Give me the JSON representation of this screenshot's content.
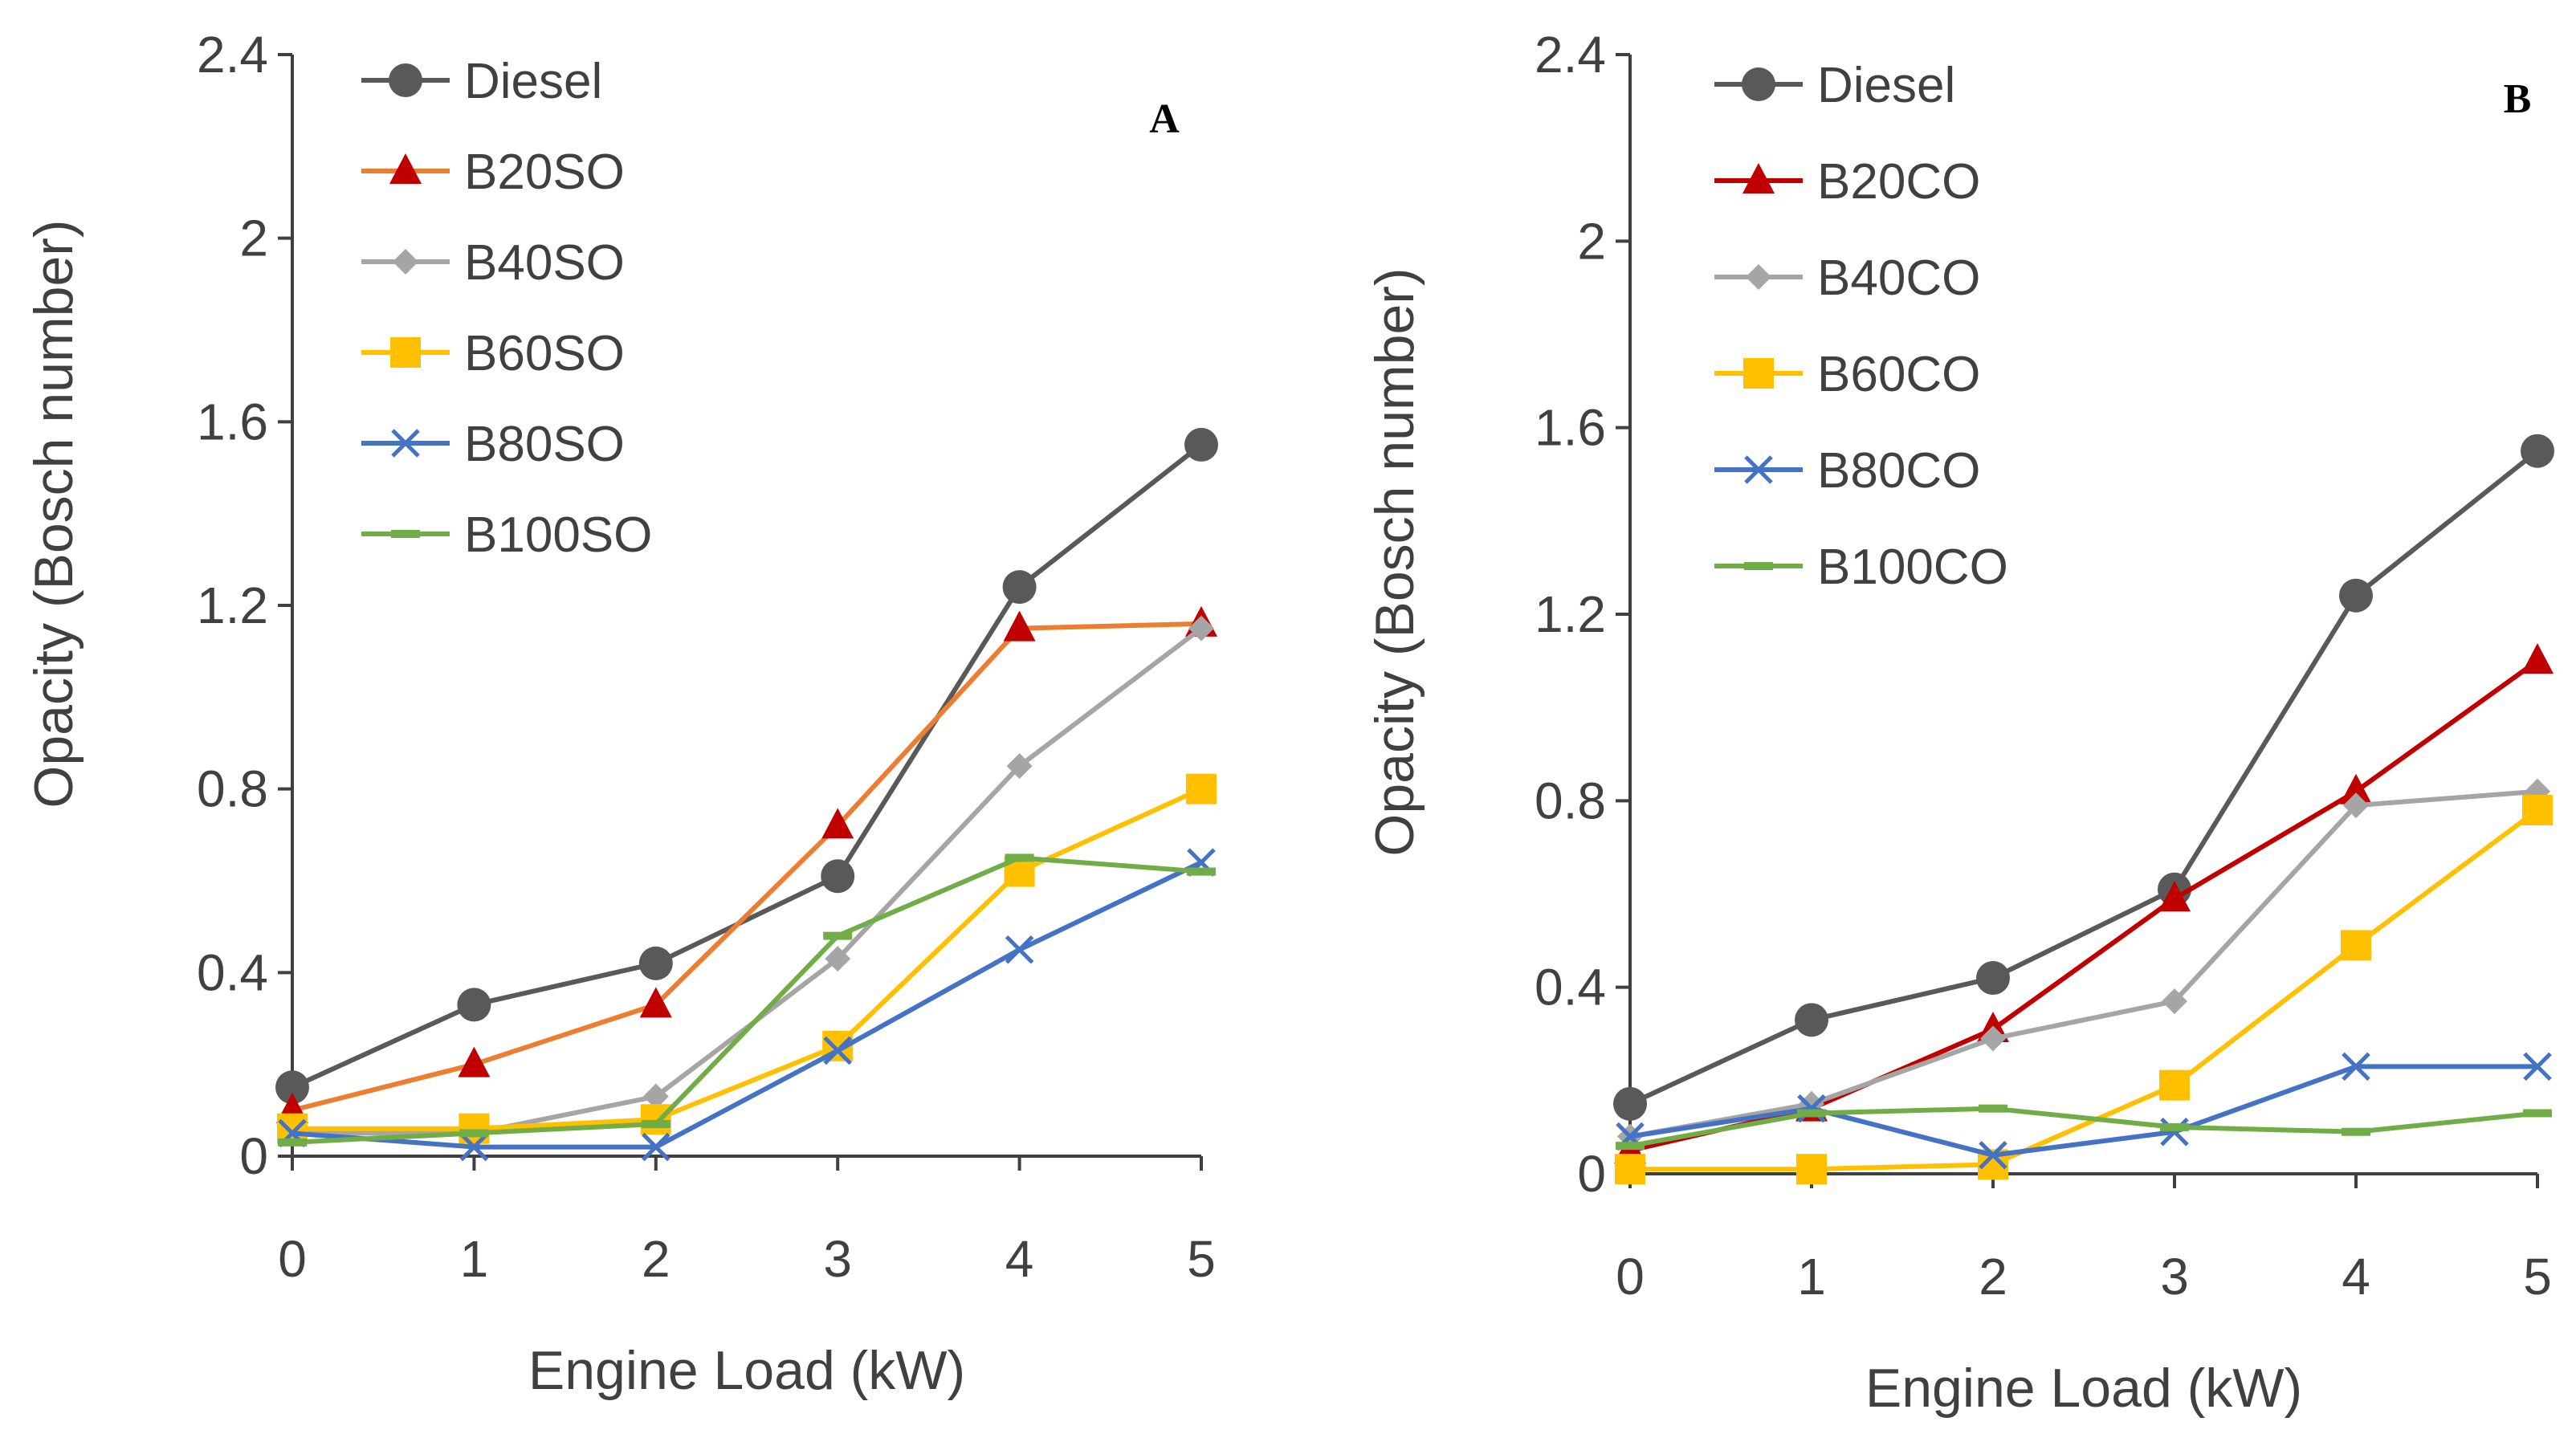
{
  "chart_data": [
    {
      "type": "line",
      "panel_label": "A",
      "xlabel": "Engine Load (kW)",
      "ylabel": "Opacity (Bosch number)",
      "xlim": [
        0,
        5
      ],
      "ylim": [
        0,
        2.4
      ],
      "x": [
        0,
        1,
        2,
        3,
        4,
        5
      ],
      "x_ticks": [
        "0",
        "1",
        "2",
        "3",
        "4",
        "5"
      ],
      "y_ticks": [
        "0",
        "0.4",
        "0.8",
        "1.2",
        "1.6",
        "2",
        "2.4"
      ],
      "y_tick_values": [
        0,
        0.4,
        0.8,
        1.2,
        1.6,
        2.0,
        2.4
      ],
      "legend_position": "top-left",
      "series": [
        {
          "name": "Diesel",
          "marker": "circle",
          "color": "#595959",
          "values": [
            0.15,
            0.33,
            0.42,
            0.61,
            1.24,
            1.55
          ]
        },
        {
          "name": "B20SO",
          "marker": "triangle",
          "color": "#ED7D31",
          "marker_color": "#C00000",
          "values": [
            0.1,
            0.2,
            0.33,
            0.72,
            1.15,
            1.16
          ]
        },
        {
          "name": "B40SO",
          "marker": "diamond",
          "color": "#A5A5A5",
          "values": [
            0.05,
            0.05,
            0.13,
            0.43,
            0.85,
            1.15
          ]
        },
        {
          "name": "B60SO",
          "marker": "square",
          "color": "#FFC000",
          "values": [
            0.06,
            0.06,
            0.08,
            0.24,
            0.62,
            0.8
          ]
        },
        {
          "name": "B80SO",
          "marker": "x",
          "color": "#4472C4",
          "values": [
            0.05,
            0.02,
            0.02,
            0.23,
            0.45,
            0.64
          ]
        },
        {
          "name": "B100SO",
          "marker": "dash",
          "color": "#70AD47",
          "values": [
            0.03,
            0.05,
            0.07,
            0.48,
            0.65,
            0.62
          ]
        }
      ]
    },
    {
      "type": "line",
      "panel_label": "B",
      "xlabel": "Engine Load (kW)",
      "ylabel": "Opacity (Bosch number)",
      "xlim": [
        0,
        5
      ],
      "ylim": [
        0,
        2.4
      ],
      "x": [
        0,
        1,
        2,
        3,
        4,
        5
      ],
      "x_ticks": [
        "0",
        "1",
        "2",
        "3",
        "4",
        "5"
      ],
      "y_ticks": [
        "0",
        "0.4",
        "0.8",
        "1.2",
        "1.6",
        "2",
        "2.4"
      ],
      "y_tick_values": [
        0,
        0.4,
        0.8,
        1.2,
        1.6,
        2.0,
        2.4
      ],
      "legend_position": "top-left",
      "series": [
        {
          "name": "Diesel",
          "marker": "circle",
          "color": "#595959",
          "values": [
            0.15,
            0.33,
            0.42,
            0.61,
            1.24,
            1.55
          ]
        },
        {
          "name": "B20CO",
          "marker": "triangle",
          "color": "#C00000",
          "marker_color": "#C00000",
          "values": [
            0.05,
            0.14,
            0.31,
            0.59,
            0.82,
            1.1
          ]
        },
        {
          "name": "B40CO",
          "marker": "diamond",
          "color": "#A5A5A5",
          "values": [
            0.08,
            0.15,
            0.29,
            0.37,
            0.79,
            0.82
          ]
        },
        {
          "name": "B60CO",
          "marker": "square",
          "color": "#FFC000",
          "values": [
            0.01,
            0.01,
            0.02,
            0.19,
            0.49,
            0.78
          ]
        },
        {
          "name": "B80CO",
          "marker": "x",
          "color": "#4472C4",
          "values": [
            0.08,
            0.14,
            0.04,
            0.09,
            0.23,
            0.23
          ]
        },
        {
          "name": "B100CO",
          "marker": "dash",
          "color": "#70AD47",
          "values": [
            0.06,
            0.13,
            0.14,
            0.1,
            0.09,
            0.13
          ]
        }
      ]
    }
  ]
}
